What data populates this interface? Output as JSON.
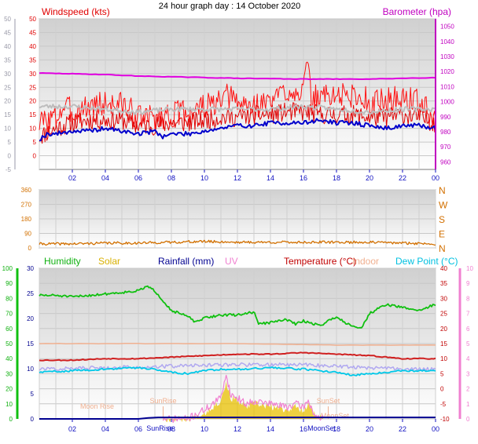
{
  "page_title": "24 hour graph day : 14 October 2020",
  "colors": {
    "windspeed": "#e00000",
    "gust": "#ff1010",
    "avg": "#0000cc",
    "gray": "#bdbdbd",
    "barometer": "#e000e0",
    "direction": "#d27000",
    "humidity": "#10c010",
    "solar": "#e8c000",
    "rainfall": "#000090",
    "uv": "#f080d0",
    "temperature": "#c00000",
    "indoor": "#f0b090",
    "dewpoint": "#00c8e8",
    "lavender": "#b0a8f0",
    "axis_blue": "#1010c0",
    "grid": "#c8c8c8"
  },
  "chart_data": [
    {
      "type": "line",
      "id": "wind",
      "left_label": "Windspeed (kts)",
      "right_label": "Barometer (hpa)",
      "left_ticks": [
        0,
        5,
        10,
        15,
        20,
        25,
        30,
        35,
        40,
        45,
        50
      ],
      "right_ticks": [
        960,
        970,
        980,
        990,
        1000,
        1010,
        1020,
        1030,
        1040,
        1050
      ],
      "outer_left_ticks": [
        -5,
        0,
        5,
        10,
        15,
        20,
        25,
        30,
        35,
        40,
        45,
        50
      ],
      "ylim_left": [
        -5,
        50
      ],
      "ylim_right": [
        955,
        1055
      ],
      "x_ticks": [
        "02",
        "04",
        "06",
        "08",
        "10",
        "12",
        "14",
        "16",
        "18",
        "20",
        "22",
        "00"
      ],
      "series": [
        {
          "key": "gust",
          "color": "#ff1010",
          "x": [
            0,
            1,
            1.5,
            2,
            3,
            4,
            5,
            6,
            7,
            8,
            9,
            10,
            11,
            11.5,
            12,
            13,
            14,
            15,
            16,
            16.2,
            16.5,
            17,
            18,
            19,
            20,
            21,
            22,
            23,
            24
          ],
          "y": [
            12,
            14,
            18,
            16,
            18,
            19,
            19,
            14,
            14,
            15,
            16,
            18,
            19,
            22,
            19,
            18,
            20,
            24,
            24,
            33,
            20,
            22,
            22,
            22,
            20,
            20,
            21,
            20,
            12
          ]
        },
        {
          "key": "windspeed",
          "color": "#e00000",
          "x": [
            0,
            1,
            2,
            3,
            4,
            5,
            6,
            7,
            8,
            9,
            10,
            11,
            12,
            13,
            14,
            15,
            16,
            17,
            18,
            19,
            20,
            21,
            22,
            23,
            24
          ],
          "y": [
            7,
            10,
            12,
            13,
            13,
            13,
            11,
            11,
            12,
            12,
            13,
            14,
            14,
            15,
            15,
            16,
            16,
            15,
            15,
            15,
            14,
            14,
            15,
            14,
            12
          ]
        },
        {
          "key": "avg",
          "color": "#0000cc",
          "x": [
            0,
            0.5,
            1,
            2,
            3,
            4,
            5,
            6,
            7,
            7.5,
            8,
            9,
            10,
            11,
            12,
            13,
            14,
            15,
            16,
            17,
            18,
            19,
            20,
            21,
            22,
            23,
            24
          ],
          "y": [
            6,
            8,
            8,
            9,
            9,
            10,
            9,
            8,
            9,
            7,
            8,
            8,
            9,
            10,
            11,
            11,
            12,
            12,
            12,
            13,
            12,
            12,
            11,
            10,
            11,
            11,
            10
          ]
        },
        {
          "key": "gray",
          "color": "#bdbdbd",
          "x": [
            0,
            2,
            4,
            6,
            8,
            10,
            12,
            14,
            16,
            18,
            20,
            22,
            24
          ],
          "y": [
            18,
            18,
            17,
            16,
            17,
            17,
            17,
            17,
            18,
            17,
            16,
            17,
            17
          ]
        },
        {
          "key": "barometer",
          "color": "#e000e0",
          "axis": "right",
          "x": [
            0,
            2,
            4,
            6,
            8,
            10,
            12,
            14,
            16,
            18,
            20,
            22,
            24
          ],
          "y": [
            1019,
            1018.5,
            1018,
            1017,
            1016.5,
            1016,
            1015.5,
            1015.3,
            1015,
            1015,
            1015,
            1015.5,
            1016
          ]
        }
      ]
    },
    {
      "type": "line",
      "id": "direction",
      "left_ticks": [
        0,
        90,
        180,
        270,
        360
      ],
      "right_labels": [
        "N",
        "W",
        "S",
        "E",
        "N"
      ],
      "ylim": [
        0,
        360
      ],
      "series": [
        {
          "key": "direction",
          "color": "#d27000",
          "x": [
            0,
            2,
            4,
            6,
            8,
            10,
            12,
            14,
            16,
            18,
            20,
            22,
            24
          ],
          "y": [
            25,
            25,
            30,
            30,
            35,
            40,
            35,
            35,
            35,
            35,
            35,
            30,
            25
          ]
        }
      ]
    },
    {
      "type": "line",
      "id": "env",
      "labels": {
        "humidity": "Humidity",
        "solar": "Solar",
        "rainfall": "Rainfall (mm)",
        "uv": "UV",
        "temperature": "Temperature (°C)",
        "indoor": "Indoor",
        "dewpoint": "Dew Point (°C)"
      },
      "humidity_ticks": [
        0,
        10,
        20,
        30,
        40,
        50,
        60,
        70,
        80,
        90,
        100
      ],
      "rain_ticks": [
        0,
        5,
        10,
        15,
        20,
        25,
        30
      ],
      "temp_ticks": [
        -10,
        -5,
        0,
        5,
        10,
        15,
        20,
        25,
        30,
        35,
        40
      ],
      "uv_ticks": [
        0,
        1,
        2,
        3,
        4,
        5,
        6,
        7,
        8,
        9,
        10
      ],
      "ylim": [
        -10,
        40
      ],
      "annotations": [
        "Moon Rise",
        "SunRise",
        "SunSet",
        "MoonSet",
        "SunRise",
        "MoonSet"
      ],
      "series": [
        {
          "key": "humidity",
          "color": "#10c010",
          "scale": "humidity",
          "x": [
            0,
            1,
            2,
            3,
            4,
            5,
            6,
            6.5,
            7,
            8,
            9,
            9.5,
            10,
            11,
            12,
            13,
            13.3,
            14,
            15,
            15.5,
            16,
            17,
            18,
            18.5,
            19,
            19.5,
            20,
            21,
            22,
            23,
            24
          ],
          "y": [
            82,
            82,
            81,
            82,
            83,
            84,
            85,
            88,
            85,
            72,
            68,
            64,
            67,
            69,
            69,
            71,
            63,
            64,
            66,
            63,
            65,
            62,
            68,
            64,
            62,
            60,
            70,
            76,
            74,
            72,
            76
          ]
        },
        {
          "key": "temperature",
          "color": "#d02020",
          "scale": "temp",
          "x": [
            0,
            2,
            4,
            6,
            8,
            10,
            12,
            14,
            16,
            18,
            20,
            22,
            24
          ],
          "y": [
            9.5,
            9.5,
            10,
            10,
            10.5,
            11,
            11.5,
            11.5,
            12,
            11.5,
            11,
            10,
            10
          ]
        },
        {
          "key": "lavender",
          "color": "#b0a8f0",
          "scale": "temp",
          "x": [
            0,
            2,
            4,
            6,
            8,
            10,
            12,
            14,
            16,
            18,
            20,
            22,
            24
          ],
          "y": [
            6.5,
            6.8,
            7,
            7.3,
            7.5,
            7.8,
            8,
            8,
            8,
            7.5,
            7,
            6.5,
            6.5
          ]
        },
        {
          "key": "dewpoint",
          "color": "#00c8e8",
          "scale": "temp",
          "x": [
            0,
            2,
            4,
            6,
            7,
            8,
            9,
            10,
            11,
            12,
            14,
            16,
            18,
            19,
            20,
            22,
            24
          ],
          "y": [
            5.5,
            6,
            6.5,
            7,
            6.5,
            5.5,
            5,
            6,
            6.5,
            6.5,
            7,
            6.5,
            5.5,
            4.5,
            5,
            6,
            6
          ]
        },
        {
          "key": "indoor",
          "color": "#f0b090",
          "scale": "temp",
          "x": [
            0,
            6,
            12,
            18,
            24
          ],
          "y": [
            15,
            15,
            15,
            14.5,
            14.5
          ]
        },
        {
          "key": "solar",
          "color": "#e8c000",
          "scale": "temp",
          "fill": true,
          "x": [
            7.5,
            9,
            10,
            10.5,
            11,
            11.3,
            11.6,
            12,
            12.5,
            13,
            14,
            15,
            15.5,
            16,
            16.3,
            16.7,
            17.2
          ],
          "y": [
            -10,
            -10,
            -8,
            -6,
            -4,
            2,
            -3,
            -4,
            -6,
            -5,
            -6,
            -7,
            -6,
            -7,
            -5,
            -9,
            -10
          ]
        },
        {
          "key": "uv",
          "color": "#f080d0",
          "scale": "temp",
          "x": [
            7.5,
            9,
            10,
            10.5,
            11,
            11.3,
            11.6,
            12,
            12.5,
            13,
            14,
            15,
            15.5,
            16,
            16.3,
            16.7,
            17.2
          ],
          "y": [
            -10,
            -10,
            -7,
            -5,
            -3,
            5,
            -2,
            -3,
            -5,
            -4,
            -5,
            -6,
            -5,
            -6,
            -4,
            -9,
            -10
          ]
        },
        {
          "key": "rainfall",
          "color": "#000090",
          "scale": "temp",
          "x": [
            0,
            6,
            7,
            24
          ],
          "y": [
            -10,
            -10,
            -9.5,
            -9.5
          ]
        }
      ]
    }
  ]
}
